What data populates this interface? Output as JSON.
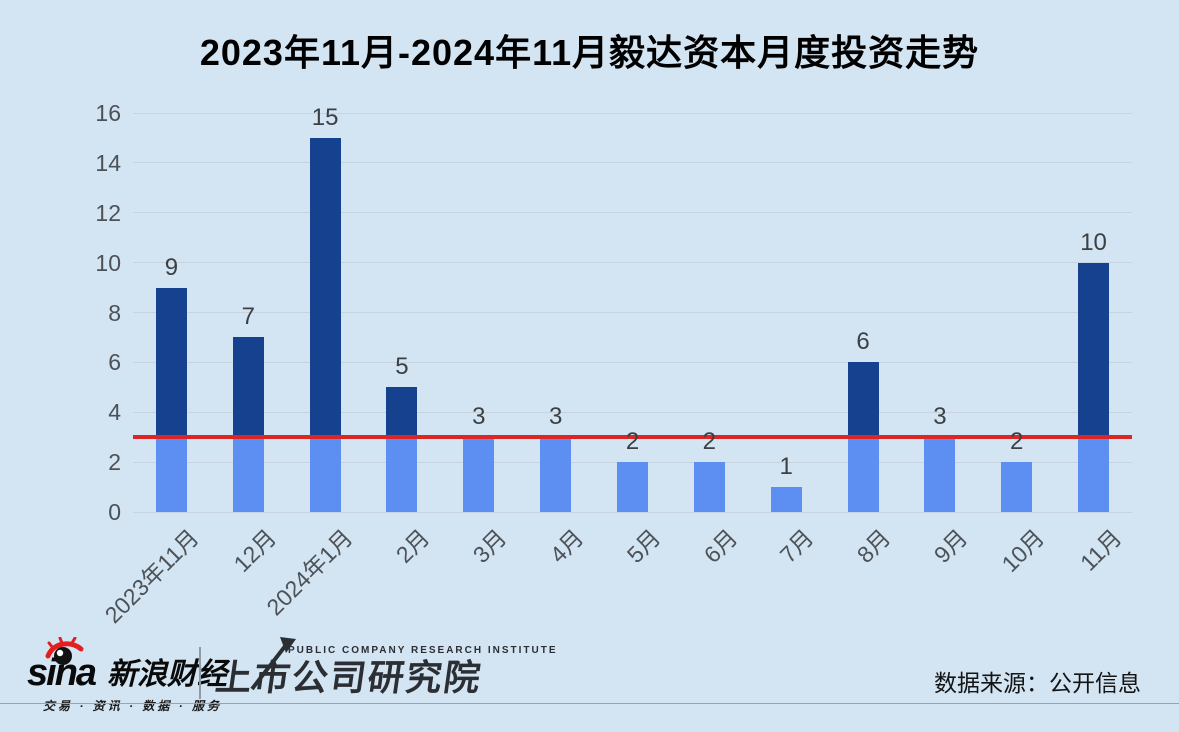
{
  "chart_data": {
    "type": "bar",
    "title": "2023年11月-2024年11月毅达资本月度投资走势",
    "categories": [
      "2023年11月",
      "12月",
      "2024年1月",
      "2月",
      "3月",
      "4月",
      "5月",
      "6月",
      "7月",
      "8月",
      "9月",
      "10月",
      "11月"
    ],
    "values": [
      9,
      7,
      15,
      5,
      3,
      3,
      2,
      2,
      1,
      6,
      3,
      2,
      10
    ],
    "xlabel": "",
    "ylabel": "",
    "ylim": [
      0,
      16
    ],
    "yticks": [
      0,
      2,
      4,
      6,
      8,
      10,
      12,
      14,
      16
    ],
    "grid": "horizontal",
    "legend": "none",
    "reference_line": {
      "value": 3,
      "color": "#dc2626"
    },
    "colors": {
      "bar_above_reference": "#15418e",
      "bar_below_reference": "#5d8ff2",
      "background": "#d3e4f3",
      "gridline": "#c7d3de"
    }
  },
  "footer": {
    "sina": {
      "brand": "sina",
      "name": "新浪财经",
      "tagline": "交易 · 资讯 · 数据 · 服务",
      "accent_color": "#e21e1e"
    },
    "institute": {
      "name": "上市公司研究院",
      "subtitle": "PUBLIC COMPANY RESEARCH INSTITUTE"
    },
    "source": "数据来源：公开信息"
  }
}
